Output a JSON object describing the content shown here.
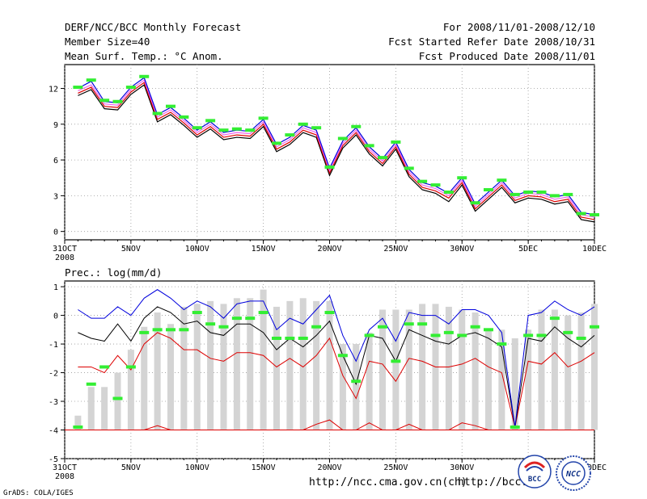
{
  "header": {
    "title": "DERF/NCC/BCC Monthly Forecast",
    "member_size": "Member Size=40",
    "variable": "Mean Surf. Temp.: °C Anom.",
    "period": "For 2008/11/01-2008/12/10",
    "started": "Fcst Started Refer Date 2008/10/31",
    "produced": "Fcst Produced Date 2008/11/01"
  },
  "footer": {
    "url_ch": "http://ncc.cma.gov.cn(ch)",
    "url_bcc": "http://bcc.c",
    "grads": "GrADS: COLA/IGES",
    "logo_bcc": "BCC",
    "logo_ncc": "NCC"
  },
  "colors": {
    "upper": "#0000dd",
    "mean": "#000000",
    "lower": "#dd0000",
    "obs": "#33ee33",
    "bar": "#d4d4d4",
    "pink": "#ee66ee"
  },
  "chart_data": [
    {
      "type": "line",
      "title": "Mean Surf. Temp.: °C Anom.",
      "x": [
        "31OCT",
        "1NOV",
        "2NOV",
        "3NOV",
        "4NOV",
        "5NOV",
        "6NOV",
        "7NOV",
        "8NOV",
        "9NOV",
        "10NOV",
        "11NOV",
        "12NOV",
        "13NOV",
        "14NOV",
        "15NOV",
        "16NOV",
        "17NOV",
        "18NOV",
        "19NOV",
        "20NOV",
        "21NOV",
        "22NOV",
        "23NOV",
        "24NOV",
        "25NOV",
        "26NOV",
        "27NOV",
        "28NOV",
        "29NOV",
        "30NOV",
        "1DEC",
        "2DEC",
        "3DEC",
        "4DEC",
        "5DEC",
        "6DEC",
        "7DEC",
        "8DEC",
        "9DEC",
        "10DEC"
      ],
      "xticks": [
        "31OCT",
        "5NOV",
        "10NOV",
        "15NOV",
        "20NOV",
        "25NOV",
        "30NOV",
        "5DEC",
        "10DEC"
      ],
      "xsub": "2008",
      "ylim": [
        -0.7,
        14
      ],
      "yticks": [
        0,
        3,
        6,
        9,
        12
      ],
      "series": [
        {
          "name": "upper",
          "values": [
            null,
            12.0,
            12.6,
            10.9,
            10.8,
            12.1,
            12.9,
            9.8,
            10.4,
            9.5,
            8.5,
            9.2,
            8.3,
            8.5,
            8.4,
            9.4,
            7.3,
            7.9,
            8.9,
            8.5,
            5.3,
            7.6,
            8.7,
            7.1,
            6.1,
            7.5,
            5.2,
            4.1,
            3.8,
            3.2,
            4.5,
            2.3,
            3.3,
            4.3,
            3.0,
            3.4,
            3.3,
            2.9,
            3.1,
            1.6,
            1.4
          ]
        },
        {
          "name": "mean",
          "values": [
            null,
            11.8,
            12.3,
            10.7,
            10.6,
            11.9,
            12.7,
            9.6,
            10.2,
            9.3,
            8.3,
            9.0,
            8.1,
            8.3,
            8.2,
            9.2,
            7.1,
            7.7,
            8.7,
            8.3,
            5.1,
            7.4,
            8.5,
            6.9,
            5.9,
            7.3,
            5.0,
            3.9,
            3.6,
            3.0,
            4.3,
            2.1,
            3.1,
            4.1,
            2.8,
            3.2,
            3.1,
            2.7,
            2.9,
            1.4,
            1.2
          ]
        },
        {
          "name": "lower",
          "values": [
            null,
            11.6,
            12.1,
            10.5,
            10.4,
            11.7,
            12.5,
            9.4,
            10.0,
            9.1,
            8.1,
            8.8,
            7.9,
            8.1,
            8.0,
            9.0,
            6.9,
            7.5,
            8.5,
            8.1,
            4.9,
            7.2,
            8.3,
            6.7,
            5.7,
            7.1,
            4.8,
            3.7,
            3.4,
            2.8,
            4.1,
            1.9,
            2.9,
            3.9,
            2.6,
            3.0,
            2.9,
            2.5,
            2.7,
            1.2,
            1.0
          ]
        },
        {
          "name": "min",
          "values": [
            null,
            11.4,
            11.9,
            10.3,
            10.2,
            11.5,
            12.3,
            9.2,
            9.8,
            8.9,
            7.9,
            8.6,
            7.7,
            7.9,
            7.8,
            8.8,
            6.7,
            7.3,
            8.3,
            7.9,
            4.7,
            7.0,
            8.1,
            6.5,
            5.5,
            6.9,
            4.6,
            3.5,
            3.2,
            2.5,
            3.9,
            1.7,
            2.7,
            3.7,
            2.4,
            2.8,
            2.7,
            2.3,
            2.5,
            1.0,
            0.8
          ]
        },
        {
          "name": "obs",
          "values": [
            null,
            12.1,
            12.7,
            11.0,
            10.9,
            12.1,
            13.0,
            9.9,
            10.5,
            9.6,
            8.7,
            9.3,
            8.5,
            8.6,
            8.5,
            9.5,
            7.4,
            8.1,
            9.0,
            8.7,
            5.4,
            7.8,
            8.8,
            7.2,
            6.2,
            7.5,
            5.3,
            4.2,
            3.9,
            3.3,
            4.5,
            2.4,
            3.5,
            4.3,
            3.1,
            3.3,
            3.3,
            3.0,
            3.1,
            1.5,
            1.4
          ]
        }
      ]
    },
    {
      "type": "bar",
      "title": "Prec.: log(mm/d)",
      "x": [
        "31OCT",
        "1NOV",
        "2NOV",
        "3NOV",
        "4NOV",
        "5NOV",
        "6NOV",
        "7NOV",
        "8NOV",
        "9NOV",
        "10NOV",
        "11NOV",
        "12NOV",
        "13NOV",
        "14NOV",
        "15NOV",
        "16NOV",
        "17NOV",
        "18NOV",
        "19NOV",
        "20NOV",
        "21NOV",
        "22NOV",
        "23NOV",
        "24NOV",
        "25NOV",
        "26NOV",
        "27NOV",
        "28NOV",
        "29NOV",
        "30NOV",
        "1DEC",
        "2DEC",
        "3DEC",
        "4DEC",
        "5DEC",
        "6DEC",
        "7DEC",
        "8DEC",
        "9DEC",
        "10DEC"
      ],
      "xticks": [
        "31OCT",
        "5NOV",
        "10NOV",
        "15NOV",
        "20NOV",
        "25NOV",
        "30NOV",
        "5DEC",
        "10DEC"
      ],
      "xsub": "2008",
      "ylim": [
        -5,
        1.2
      ],
      "yticks": [
        -5,
        -4,
        -3,
        -2,
        -1,
        0,
        1
      ],
      "series": [
        {
          "name": "bar_top",
          "values": [
            null,
            -3.5,
            -2.5,
            -2.5,
            -2.0,
            -1.2,
            -0.4,
            0.1,
            -0.3,
            0.3,
            0.4,
            0.5,
            0.4,
            0.6,
            0.6,
            0.9,
            0.3,
            0.5,
            0.6,
            0.5,
            0.5,
            -1.0,
            -1.0,
            -0.6,
            0.2,
            0.2,
            0.2,
            0.4,
            0.4,
            0.3,
            0.2,
            0.1,
            -0.5,
            -0.5,
            -0.8,
            -0.5,
            0.2,
            0.2,
            0.0,
            0.1,
            0.4
          ]
        },
        {
          "name": "bar_bottom",
          "values": [
            null,
            -4.0,
            -4.0,
            -4.0,
            -4.0,
            -4.0,
            -4.0,
            -4.0,
            -4.0,
            -4.0,
            -4.0,
            -4.0,
            -4.0,
            -4.0,
            -4.0,
            -4.0,
            -4.0,
            -4.0,
            -4.0,
            -4.0,
            -4.0,
            -4.0,
            -4.0,
            -4.0,
            -4.0,
            -4.0,
            -4.0,
            -4.0,
            -4.0,
            -4.0,
            -4.0,
            -4.0,
            -4.0,
            -4.0,
            -4.0,
            -4.0,
            -4.0,
            -4.0,
            -4.0,
            -4.0,
            -4.0
          ]
        },
        {
          "name": "upper",
          "values": [
            null,
            0.2,
            -0.1,
            -0.1,
            0.3,
            0.0,
            0.6,
            0.9,
            0.6,
            0.2,
            0.5,
            0.3,
            -0.1,
            0.4,
            0.5,
            0.5,
            -0.5,
            -0.1,
            -0.3,
            0.2,
            0.7,
            -0.7,
            -1.6,
            -0.5,
            -0.1,
            -0.9,
            0.1,
            0.0,
            0.0,
            -0.3,
            0.2,
            0.2,
            0.0,
            -0.6,
            -3.9,
            0.0,
            0.1,
            0.5,
            0.2,
            0.0,
            0.3
          ]
        },
        {
          "name": "mean",
          "values": [
            null,
            -0.6,
            -0.8,
            -0.9,
            -0.3,
            -0.9,
            -0.1,
            0.3,
            0.1,
            -0.3,
            -0.2,
            -0.6,
            -0.7,
            -0.3,
            -0.3,
            -0.6,
            -1.2,
            -0.8,
            -1.1,
            -0.7,
            -0.2,
            -1.4,
            -2.4,
            -0.7,
            -0.8,
            -1.6,
            -0.5,
            -0.7,
            -0.9,
            -1.0,
            -0.7,
            -0.6,
            -0.8,
            -1.1,
            -3.9,
            -0.8,
            -0.9,
            -0.4,
            -0.8,
            -1.1,
            -0.7
          ]
        },
        {
          "name": "lower",
          "values": [
            null,
            -1.8,
            -1.8,
            -2.0,
            -1.4,
            -1.9,
            -1.0,
            -0.6,
            -0.8,
            -1.2,
            -1.2,
            -1.5,
            -1.6,
            -1.3,
            -1.3,
            -1.4,
            -1.8,
            -1.5,
            -1.8,
            -1.4,
            -0.8,
            -2.1,
            -2.9,
            -1.6,
            -1.7,
            -2.3,
            -1.5,
            -1.6,
            -1.8,
            -1.8,
            -1.7,
            -1.5,
            -1.8,
            -2.0,
            -3.9,
            -1.6,
            -1.7,
            -1.3,
            -1.8,
            -1.6,
            -1.3
          ]
        },
        {
          "name": "min",
          "values": [
            null,
            -4.0,
            -4.0,
            -4.0,
            -4.0,
            -4.0,
            -4.0,
            -3.85,
            -4.0,
            -4.0,
            -4.0,
            -4.0,
            -4.0,
            -4.0,
            -4.0,
            -4.0,
            -4.0,
            -4.0,
            -4.0,
            -3.8,
            -3.65,
            -4.0,
            -4.0,
            -3.75,
            -4.0,
            -4.0,
            -3.8,
            -4.0,
            -4.0,
            -4.0,
            -3.75,
            -3.85,
            -4.0,
            -4.0,
            -4.0,
            -4.0,
            -4.0,
            -4.0,
            -4.0,
            -4.0,
            -4.0
          ]
        },
        {
          "name": "obs",
          "values": [
            null,
            -3.9,
            -2.4,
            -1.8,
            -2.9,
            -1.8,
            -0.6,
            -0.5,
            -0.5,
            -0.5,
            0.1,
            -0.3,
            -0.4,
            -0.1,
            -0.1,
            0.1,
            -0.8,
            -0.8,
            -0.8,
            -0.4,
            0.1,
            -1.4,
            -2.3,
            -0.7,
            -0.4,
            -1.6,
            -0.3,
            -0.3,
            -0.7,
            -0.6,
            -0.7,
            -0.4,
            -0.5,
            -1.0,
            -3.9,
            -0.7,
            -0.7,
            -0.1,
            -0.6,
            -0.8,
            -0.4
          ]
        }
      ]
    }
  ]
}
